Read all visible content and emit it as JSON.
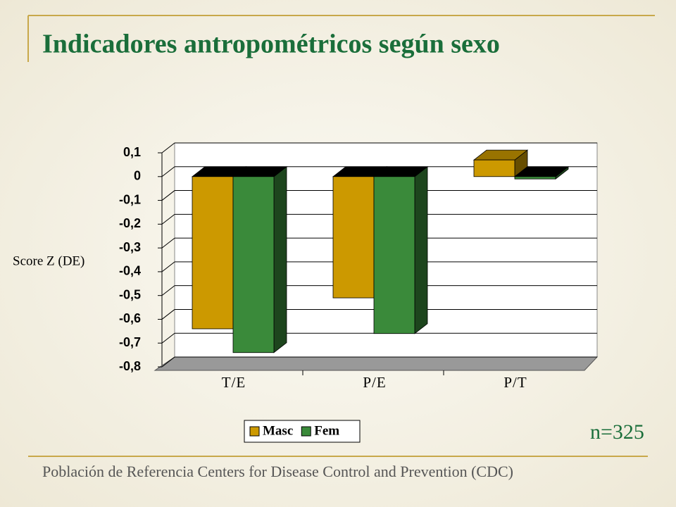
{
  "title": "Indicadores antropométricos según sexo",
  "footer": "Población de Referencia Centers for Disease Control and Prevention (CDC)",
  "sample_note": "n=325",
  "chart_data": {
    "type": "bar3d",
    "y_label": "Score Z (DE)",
    "categories": [
      "T/E",
      "P/E",
      "P/T"
    ],
    "series": [
      {
        "name": "Masc",
        "color": "#cc9900",
        "values": [
          -0.64,
          -0.51,
          0.07
        ]
      },
      {
        "name": "Fem",
        "color": "#3a8a3a",
        "values": [
          -0.74,
          -0.66,
          -0.01
        ]
      }
    ],
    "ylim": [
      -0.8,
      0.1
    ],
    "yticks": [
      {
        "value": 0.1,
        "label": "0,1"
      },
      0,
      {
        "value": -0.1,
        "label": "-0,1"
      },
      {
        "value": -0.2,
        "label": "-0,2"
      },
      {
        "value": -0.3,
        "label": "-0,3"
      },
      {
        "value": -0.4,
        "label": "-0,4"
      },
      {
        "value": -0.5,
        "label": "-0,5"
      },
      {
        "value": -0.6,
        "label": "-0,6"
      },
      {
        "value": -0.7,
        "label": "-0,7"
      },
      {
        "value": -0.8,
        "label": "-0,8"
      }
    ],
    "grid": true,
    "legend": "bottom"
  }
}
